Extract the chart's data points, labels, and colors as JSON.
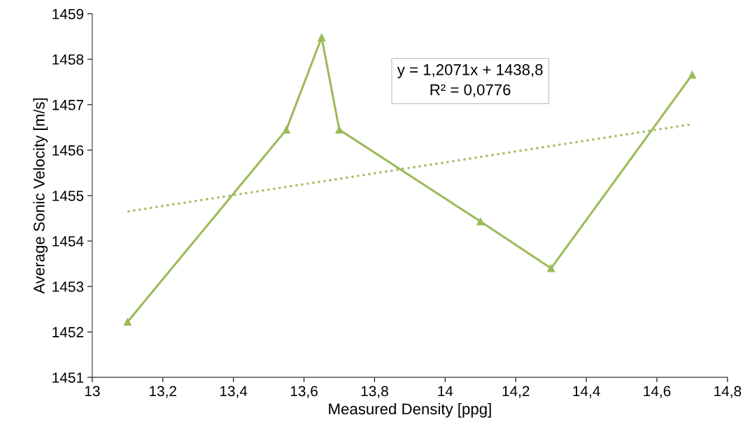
{
  "chart_data": {
    "type": "line",
    "xlabel": "Measured Density [ppg]",
    "ylabel": "Average Sonic Velocity [m/s]",
    "x": [
      13.1,
      13.55,
      13.65,
      13.7,
      14.1,
      14.3,
      14.7
    ],
    "series": [
      {
        "color": "#9bbb59",
        "marker": "triangle",
        "line_style": "solid",
        "values": [
          1452.22,
          1456.45,
          1458.48,
          1456.45,
          1454.43,
          1453.4,
          1457.66
        ]
      },
      {
        "type": "line",
        "color": "#9bbb59",
        "marker": "none",
        "line_style": "dotted",
        "x": [
          13.1,
          14.7
        ],
        "values": [
          1454.65,
          1456.57
        ]
      }
    ],
    "annotations": [
      "y = 1,2071x + 1438,8\nR² = 0,0776"
    ],
    "xlim": [
      13,
      14.8
    ],
    "xticks": [
      13,
      {
        "value": 13.2,
        "label": "13,2"
      },
      {
        "value": 13.4,
        "label": "13,4"
      },
      {
        "value": 13.6,
        "label": "13,6"
      },
      {
        "value": 13.8,
        "label": "13,8"
      },
      14,
      {
        "value": 14.2,
        "label": "14,2"
      },
      {
        "value": 14.4,
        "label": "14,4"
      },
      {
        "value": 14.6,
        "label": "14,6"
      },
      {
        "value": 14.8,
        "label": "14,8"
      }
    ],
    "ylim": [
      1451,
      1459
    ],
    "yticks": [
      1451,
      1452,
      1453,
      1454,
      1455,
      1456,
      1457,
      1458,
      1459
    ],
    "grid": false,
    "legend": false
  }
}
